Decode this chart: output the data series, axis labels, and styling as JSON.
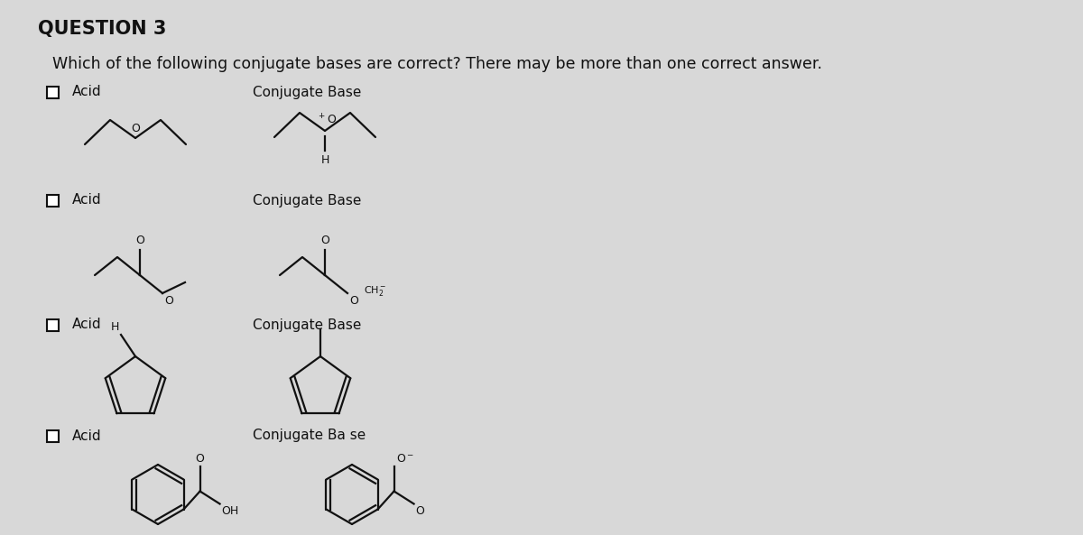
{
  "title": "QUESTION 3",
  "question": "Which of the following conjugate bases are correct? There may be more than one correct answer.",
  "bg_color": "#d8d8d8",
  "text_color": "#111111",
  "label_acid": "Acid",
  "label_conj": "Conjugate Base",
  "label_conj4": "Conjugate Ba se",
  "title_fontsize": 15,
  "question_fontsize": 12.5,
  "label_fontsize": 11,
  "mol_lw": 1.6
}
